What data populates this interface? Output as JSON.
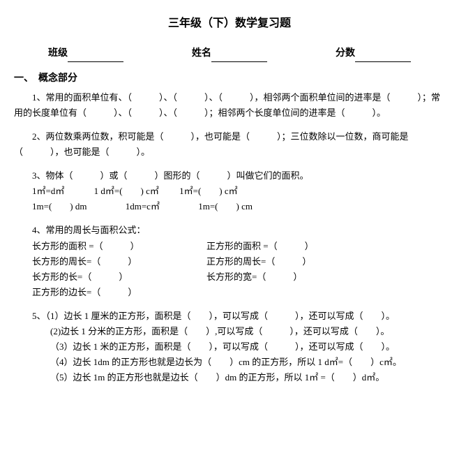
{
  "title": "三年级（下）数学复习题",
  "info": {
    "class": "班级",
    "name": "姓名",
    "score": "分数"
  },
  "section1": "一、　概念部分",
  "q1": "1、常用的面积单位有、（　　　）、（　　　）、（　　　），相邻两个面积单位间的进率是（　　　）；常用的长度单位有（　　　）、（　　　）、（　　　）；相邻两个长度单位间的进率是（　　　）。",
  "q2": "2、两位数乘两位数，积可能是（　　　），也可能是（　　　）；三位数除以一位数，商可能是（　　　），也可能是（　　　）。",
  "q3": "3、物体（　　　）或（　　　）图形的（　　　）叫做它们的面积。",
  "q3_l1_a": "1㎡=d㎡",
  "q3_l1_b": "1 d㎡=(　　) c㎡",
  "q3_l1_c": "1㎡=(　　) c㎡",
  "q3_l2_a": "1m=(　　) dm",
  "q3_l2_b": "1dm=c㎡",
  "q3_l2_c": "1m=(　　) cm",
  "q4_head": "4、常用的周长与面积公式：",
  "q4_r1a": "长方形的面积 =（　　　）",
  "q4_r1b": "正方形的面积 =（　　　）",
  "q4_r2a": "长方形的周长=（　　　）",
  "q4_r2b": "正方形的周长=（　　　）",
  "q4_r3a": "长方形的长=（　　　）",
  "q4_r3b": "长方形的宽=（　　　）",
  "q4_r4a": "正方形的边长=（　　　）",
  "q5_1": "5、（1）边长 1 厘米的正方形，面积是（　　），可以写成（　　　），还可以写成（　　）。",
  "q5_2": "(2)边长 1 分米的正方形，面积是（　　）,可以写成（　　　），还可以写成（　　）。",
  "q5_3": "（3）边长 1 米的正方形，面积是（　　），可以写成（　　　），还可以写成（　　）。",
  "q5_4": "（4）边长 1dm 的正方形也就是边长为（　　）cm 的正方形，所以 1 d㎡=（　　）c㎡。",
  "q5_5": "（5）边长 1m 的正方形也就是边长（　　）dm 的正方形，所以 1㎡ =（　　）d㎡。"
}
